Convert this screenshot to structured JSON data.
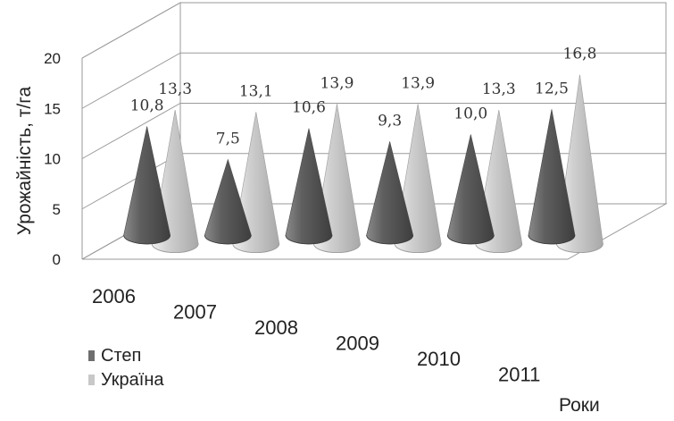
{
  "chart_data": {
    "type": "bar",
    "style": "3d-cone",
    "categories": [
      "2006",
      "2007",
      "2008",
      "2009",
      "2010",
      "2011"
    ],
    "series": [
      {
        "name": "Степ",
        "color": "#6e6e6e",
        "values": [
          10.8,
          7.5,
          10.6,
          9.3,
          10.0,
          12.5
        ],
        "labels": [
          "10,8",
          "7,5",
          "10,6",
          "9,3",
          "10,0",
          "12,5"
        ]
      },
      {
        "name": "Україна",
        "color": "#c8c8c8",
        "values": [
          13.3,
          13.1,
          13.9,
          13.9,
          13.3,
          16.8
        ],
        "labels": [
          "13,3",
          "13,1",
          "13,9",
          "13,9",
          "13,3",
          "16,8"
        ]
      }
    ],
    "ylabel": "Урожайність, т/га",
    "xlabel": "Роки",
    "ylim": [
      0,
      20
    ],
    "yticks": [
      "0",
      "5",
      "10",
      "15",
      "20"
    ],
    "grid": true,
    "legend": "bottom-left"
  }
}
